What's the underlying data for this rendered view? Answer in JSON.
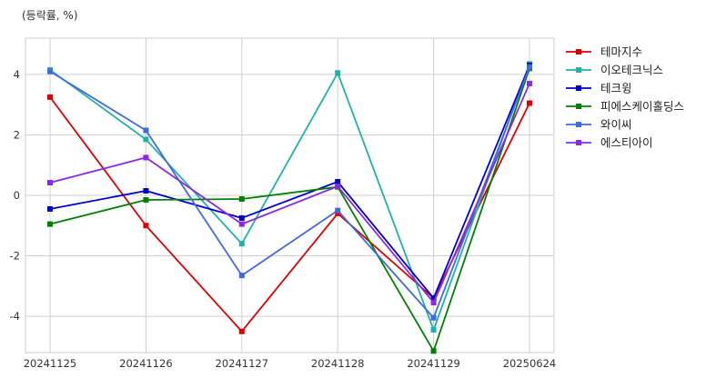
{
  "chart_data": {
    "type": "line",
    "unit_note": "(등락률, %)",
    "title": "",
    "xlabel": "",
    "ylabel": "",
    "categories": [
      "20241125",
      "20241126",
      "20241127",
      "20241128",
      "20241129",
      "20250624"
    ],
    "ylim": [
      -5.2,
      5.2
    ],
    "yticks": [
      -4,
      -2,
      0,
      2,
      4
    ],
    "grid": true,
    "legend_position": "right",
    "series": [
      {
        "name": "테마지수",
        "color": "#dd0000",
        "values": [
          3.25,
          -1.0,
          -4.5,
          -0.6,
          -3.4,
          3.05
        ]
      },
      {
        "name": "이오테크닉스",
        "color": "#20b2aa",
        "values": [
          4.15,
          1.85,
          -1.6,
          4.05,
          -4.45,
          4.35
        ]
      },
      {
        "name": "테크윙",
        "color": "#0000cc",
        "values": [
          -0.45,
          0.15,
          -0.75,
          0.45,
          -3.4,
          4.3
        ]
      },
      {
        "name": "피에스케이홀딩스",
        "color": "#008000",
        "values": [
          -0.95,
          -0.15,
          -0.12,
          0.28,
          -5.15,
          4.2
        ]
      },
      {
        "name": "와이씨",
        "color": "#4169e1",
        "values": [
          4.1,
          2.15,
          -2.65,
          -0.5,
          -4.05,
          4.25
        ]
      },
      {
        "name": "에스티아이",
        "color": "#8a2be2",
        "values": [
          0.42,
          1.25,
          -0.95,
          0.3,
          -3.55,
          3.7
        ]
      }
    ]
  }
}
